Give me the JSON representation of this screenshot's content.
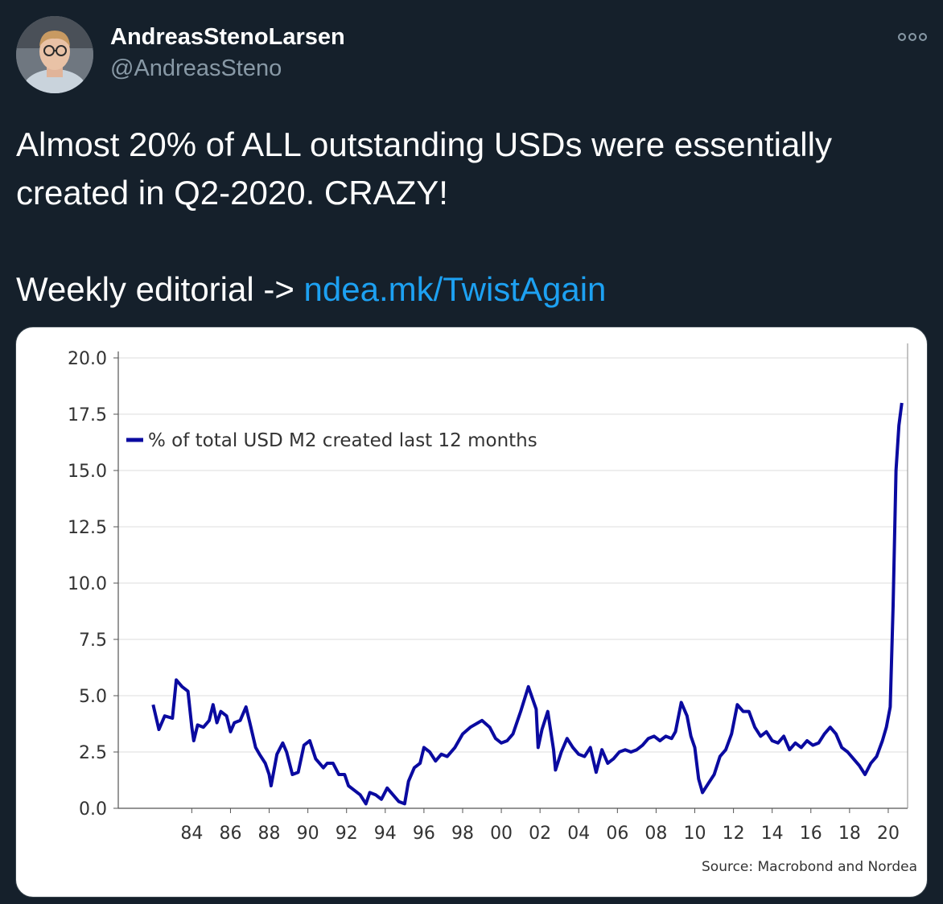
{
  "tweet": {
    "display_name": "AndreasStenoLarsen",
    "handle": "@AndreasSteno",
    "text_line1": "Almost 20% of ALL outstanding USDs were essentially",
    "text_line2": "created in Q2-2020. CRAZY!",
    "text_prefix": "Weekly editorial -> ",
    "link_text": "ndea.mk/TwistAgain"
  },
  "icons": {
    "avatar": "profile-photo",
    "more": "more-options-icon"
  },
  "colors": {
    "background": "#15202b",
    "link": "#1da1f2",
    "handle": "#8899a6",
    "series": "#0a0aa0"
  },
  "chart_data": {
    "type": "line",
    "title": "",
    "xlabel": "",
    "ylabel": "",
    "xlim": [
      1980.2,
      2021.0
    ],
    "ylim": [
      0,
      20
    ],
    "x_tick_labels": [
      "84",
      "86",
      "88",
      "90",
      "92",
      "94",
      "96",
      "98",
      "00",
      "02",
      "04",
      "06",
      "08",
      "10",
      "12",
      "14",
      "16",
      "18",
      "20"
    ],
    "x_tick_values": [
      1984,
      1986,
      1988,
      1990,
      1992,
      1994,
      1996,
      1998,
      2000,
      2002,
      2004,
      2006,
      2008,
      2010,
      2012,
      2014,
      2016,
      2018,
      2020
    ],
    "y_tick_labels": [
      "20.0",
      "17.5",
      "15.0",
      "12.5",
      "10.0",
      "7.5",
      "5.0",
      "2.5",
      "0.0"
    ],
    "y_tick_values": [
      20,
      17.5,
      15,
      12.5,
      10,
      7.5,
      5,
      2.5,
      0
    ],
    "grid": true,
    "legend_position": "top-left",
    "source": "Source: Macrobond and Nordea",
    "series": [
      {
        "name": "% of total USD M2 created last 12 months",
        "color": "#0a0aa0",
        "x": [
          1982.0,
          1982.3,
          1982.6,
          1983.0,
          1983.2,
          1983.5,
          1983.8,
          1984.0,
          1984.1,
          1984.3,
          1984.6,
          1984.9,
          1985.1,
          1985.3,
          1985.5,
          1985.8,
          1986.0,
          1986.2,
          1986.5,
          1986.8,
          1987.0,
          1987.3,
          1987.5,
          1987.8,
          1988.0,
          1988.1,
          1988.4,
          1988.7,
          1988.9,
          1989.2,
          1989.5,
          1989.8,
          1990.1,
          1990.4,
          1990.8,
          1991.0,
          1991.3,
          1991.6,
          1991.9,
          1992.1,
          1992.4,
          1992.7,
          1993.0,
          1993.2,
          1993.5,
          1993.8,
          1994.1,
          1994.4,
          1994.7,
          1995.0,
          1995.2,
          1995.5,
          1995.8,
          1996.0,
          1996.3,
          1996.6,
          1996.9,
          1997.2,
          1997.6,
          1998.0,
          1998.4,
          1998.8,
          1999.0,
          1999.4,
          1999.7,
          2000.0,
          2000.3,
          2000.6,
          2001.0,
          2001.4,
          2001.8,
          2001.9,
          2002.1,
          2002.4,
          2002.7,
          2002.8,
          2003.1,
          2003.4,
          2003.7,
          2004.0,
          2004.3,
          2004.6,
          2004.9,
          2005.2,
          2005.5,
          2005.8,
          2006.1,
          2006.4,
          2006.7,
          2007.0,
          2007.3,
          2007.6,
          2007.9,
          2008.2,
          2008.5,
          2008.8,
          2009.0,
          2009.3,
          2009.6,
          2009.8,
          2010.0,
          2010.2,
          2010.4,
          2010.7,
          2011.0,
          2011.3,
          2011.6,
          2011.9,
          2012.2,
          2012.5,
          2012.8,
          2013.1,
          2013.4,
          2013.7,
          2014.0,
          2014.3,
          2014.6,
          2014.9,
          2015.2,
          2015.5,
          2015.8,
          2016.1,
          2016.4,
          2016.7,
          2017.0,
          2017.3,
          2017.6,
          2017.9,
          2018.2,
          2018.5,
          2018.8,
          2019.1,
          2019.4,
          2019.7,
          2019.9,
          2020.1,
          2020.25,
          2020.4,
          2020.55,
          2020.7
        ],
        "y": [
          4.6,
          3.5,
          4.1,
          4.0,
          5.7,
          5.4,
          5.2,
          3.6,
          3.0,
          3.7,
          3.6,
          3.9,
          4.6,
          3.8,
          4.3,
          4.1,
          3.4,
          3.8,
          3.9,
          4.5,
          3.8,
          2.7,
          2.4,
          2.0,
          1.5,
          1.0,
          2.4,
          2.9,
          2.5,
          1.5,
          1.6,
          2.8,
          3.0,
          2.2,
          1.8,
          2.0,
          2.0,
          1.5,
          1.5,
          1.0,
          0.8,
          0.6,
          0.2,
          0.7,
          0.6,
          0.4,
          0.9,
          0.6,
          0.3,
          0.2,
          1.2,
          1.8,
          2.0,
          2.7,
          2.5,
          2.1,
          2.4,
          2.3,
          2.7,
          3.3,
          3.6,
          3.8,
          3.9,
          3.6,
          3.1,
          2.9,
          3.0,
          3.3,
          4.3,
          5.4,
          4.4,
          2.7,
          3.5,
          4.3,
          2.6,
          1.7,
          2.5,
          3.1,
          2.7,
          2.4,
          2.3,
          2.7,
          1.6,
          2.6,
          2.0,
          2.2,
          2.5,
          2.6,
          2.5,
          2.6,
          2.8,
          3.1,
          3.2,
          3.0,
          3.2,
          3.1,
          3.4,
          4.7,
          4.1,
          3.2,
          2.7,
          1.3,
          0.7,
          1.1,
          1.5,
          2.3,
          2.6,
          3.3,
          4.6,
          4.3,
          4.3,
          3.6,
          3.2,
          3.4,
          3.0,
          2.9,
          3.2,
          2.6,
          2.9,
          2.7,
          3.0,
          2.8,
          2.9,
          3.3,
          3.6,
          3.3,
          2.7,
          2.5,
          2.2,
          1.9,
          1.5,
          2.0,
          2.3,
          3.0,
          3.6,
          4.5,
          9.0,
          15.0,
          17.0,
          18.0
        ]
      }
    ]
  }
}
